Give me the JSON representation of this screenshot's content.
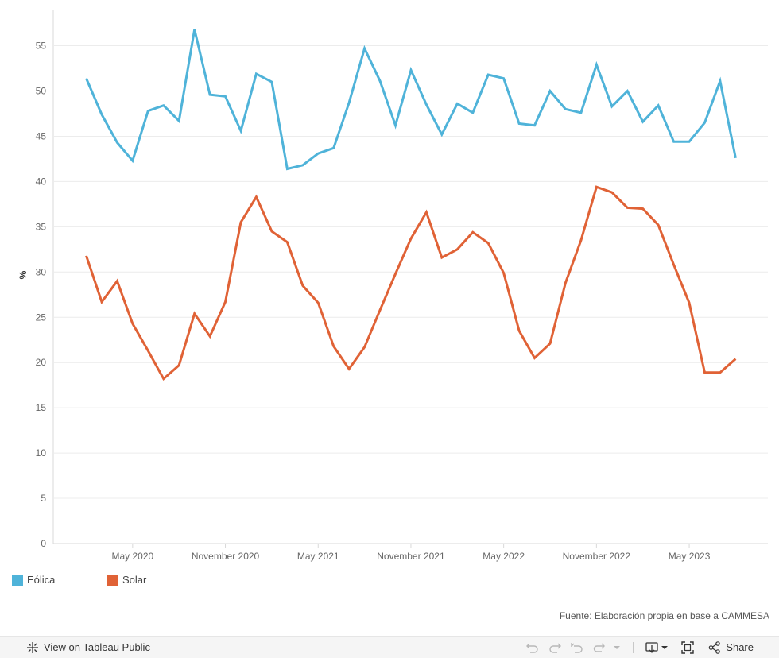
{
  "chart_data": {
    "type": "line",
    "ylabel": "%",
    "xlabel": "",
    "ylim": [
      0,
      59
    ],
    "yticks": [
      "0",
      "5",
      "10",
      "15",
      "20",
      "25",
      "30",
      "35",
      "40",
      "45",
      "50",
      "55"
    ],
    "xticks": [
      "May 2020",
      "November 2020",
      "May 2021",
      "November 2021",
      "May 2022",
      "November 2022",
      "May 2023"
    ],
    "grid": "horizontal",
    "legend_position": "bottom-left",
    "x": [
      "2020-02",
      "2020-03",
      "2020-04",
      "2020-05",
      "2020-06",
      "2020-07",
      "2020-08",
      "2020-09",
      "2020-10",
      "2020-11",
      "2020-12",
      "2021-01",
      "2021-02",
      "2021-03",
      "2021-04",
      "2021-05",
      "2021-06",
      "2021-07",
      "2021-08",
      "2021-09",
      "2021-10",
      "2021-11",
      "2021-12",
      "2022-01",
      "2022-02",
      "2022-03",
      "2022-04",
      "2022-05",
      "2022-06",
      "2022-07",
      "2022-08",
      "2022-09",
      "2022-10",
      "2022-11",
      "2022-12",
      "2023-01",
      "2023-02",
      "2023-03",
      "2023-04",
      "2023-05",
      "2023-06",
      "2023-07",
      "2023-08"
    ],
    "series": [
      {
        "name": "Eólica",
        "color": "#4fb3d9",
        "values": [
          51.4,
          47.4,
          44.3,
          42.3,
          47.8,
          48.4,
          46.7,
          56.8,
          49.6,
          49.4,
          45.6,
          51.9,
          51.0,
          41.4,
          41.8,
          43.1,
          43.7,
          48.7,
          54.7,
          51.1,
          46.2,
          52.3,
          48.5,
          45.2,
          48.6,
          47.6,
          51.8,
          51.4,
          46.4,
          46.2,
          50.0,
          48.0,
          47.6,
          52.9,
          48.3,
          50.0,
          46.6,
          48.4,
          44.4,
          44.4,
          46.5,
          51.1,
          42.6
        ]
      },
      {
        "name": "Solar",
        "color": "#e06236",
        "values": [
          31.8,
          26.7,
          29.0,
          24.3,
          21.3,
          18.2,
          19.7,
          25.4,
          22.9,
          26.7,
          35.5,
          38.3,
          34.5,
          33.3,
          28.5,
          26.6,
          21.8,
          19.3,
          21.7,
          25.8,
          29.8,
          33.7,
          36.6,
          31.6,
          32.5,
          34.4,
          33.2,
          29.9,
          23.5,
          20.5,
          22.1,
          28.8,
          33.5,
          39.4,
          38.8,
          37.1,
          37.0,
          35.2,
          30.8,
          26.6,
          18.9,
          18.9,
          20.4
        ]
      }
    ]
  },
  "source_note": "Fuente: Elaboración propia en base a CAMMESA",
  "toolbar": {
    "view_label": "View on Tableau Public",
    "share_label": "Share"
  }
}
